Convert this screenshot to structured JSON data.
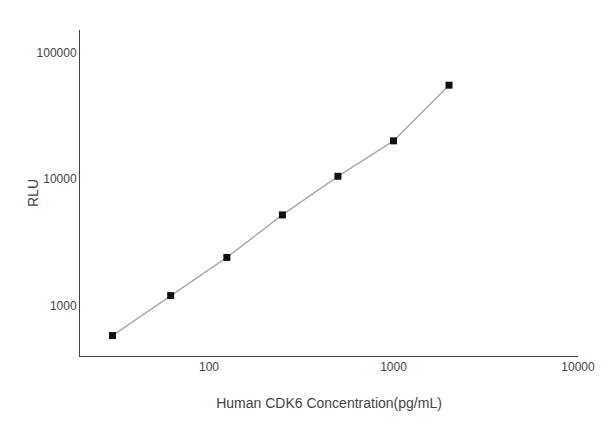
{
  "chart_data": {
    "type": "line",
    "xlabel": "Human CDK6 Concentration(pg/mL)",
    "ylabel": "RLU",
    "x": [
      30,
      62,
      125,
      250,
      500,
      1000,
      2000
    ],
    "series": [
      {
        "type": "line",
        "color": "#aaaaaa",
        "values": [
          580,
          1200,
          2400,
          5200,
          10500,
          20000,
          55000
        ]
      },
      {
        "type": "scatter",
        "color": "#111111",
        "marker": "square",
        "values": [
          580,
          1200,
          2400,
          5200,
          10500,
          20000,
          55000
        ]
      }
    ],
    "xlim": [
      20,
      10000
    ],
    "ylim": [
      400,
      150000
    ],
    "xticks": [
      100,
      1000,
      10000
    ],
    "yticks": [
      1000,
      10000,
      100000
    ],
    "log": true,
    "grid": false
  }
}
